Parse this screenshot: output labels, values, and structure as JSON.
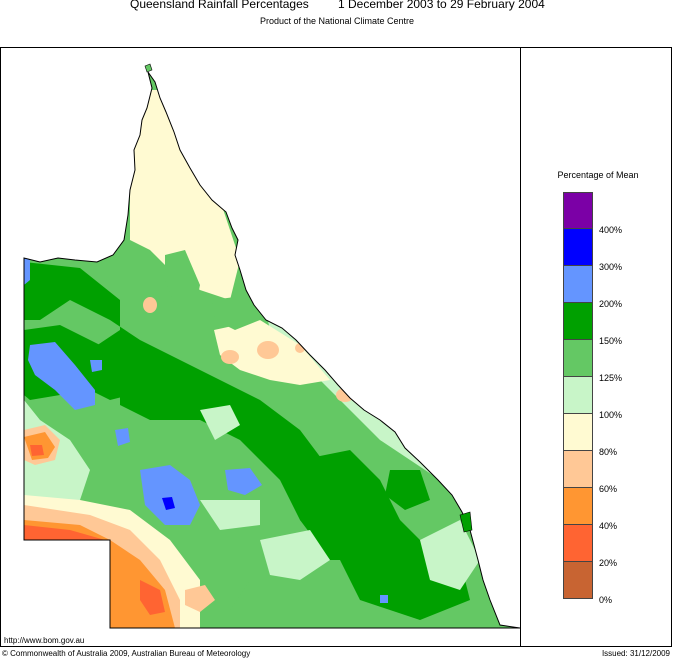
{
  "header": {
    "title_main": "Queensland Rainfall Percentages",
    "title_period": "1 December 2003 to 29 February 2004",
    "subtitle": "Product of the National Climate Centre"
  },
  "legend": {
    "title": "Percentage of Mean",
    "classes": [
      {
        "range": "400%+",
        "color": "#7b00a6"
      },
      {
        "range": "300-400%",
        "color": "#0000ff"
      },
      {
        "range": "200-300%",
        "color": "#6495ff"
      },
      {
        "range": "150-200%",
        "color": "#00a000"
      },
      {
        "range": "125-150%",
        "color": "#64c864"
      },
      {
        "range": "100-125%",
        "color": "#c8f5c8"
      },
      {
        "range": "80-100%",
        "color": "#fffad2"
      },
      {
        "range": "60-80%",
        "color": "#ffc896"
      },
      {
        "range": "40-60%",
        "color": "#ff9632"
      },
      {
        "range": "20-40%",
        "color": "#ff6432"
      },
      {
        "range": "0-20%",
        "color": "#c86432"
      }
    ],
    "ticks": [
      "400%",
      "300%",
      "200%",
      "150%",
      "125%",
      "100%",
      "80%",
      "60%",
      "40%",
      "20%",
      "0%"
    ]
  },
  "footer": {
    "url": "http://www.bom.gov.au",
    "copyright": "© Commonwealth of Australia 2009, Australian Bureau of Meteorology",
    "issued": "Issued: 31/12/2009"
  }
}
